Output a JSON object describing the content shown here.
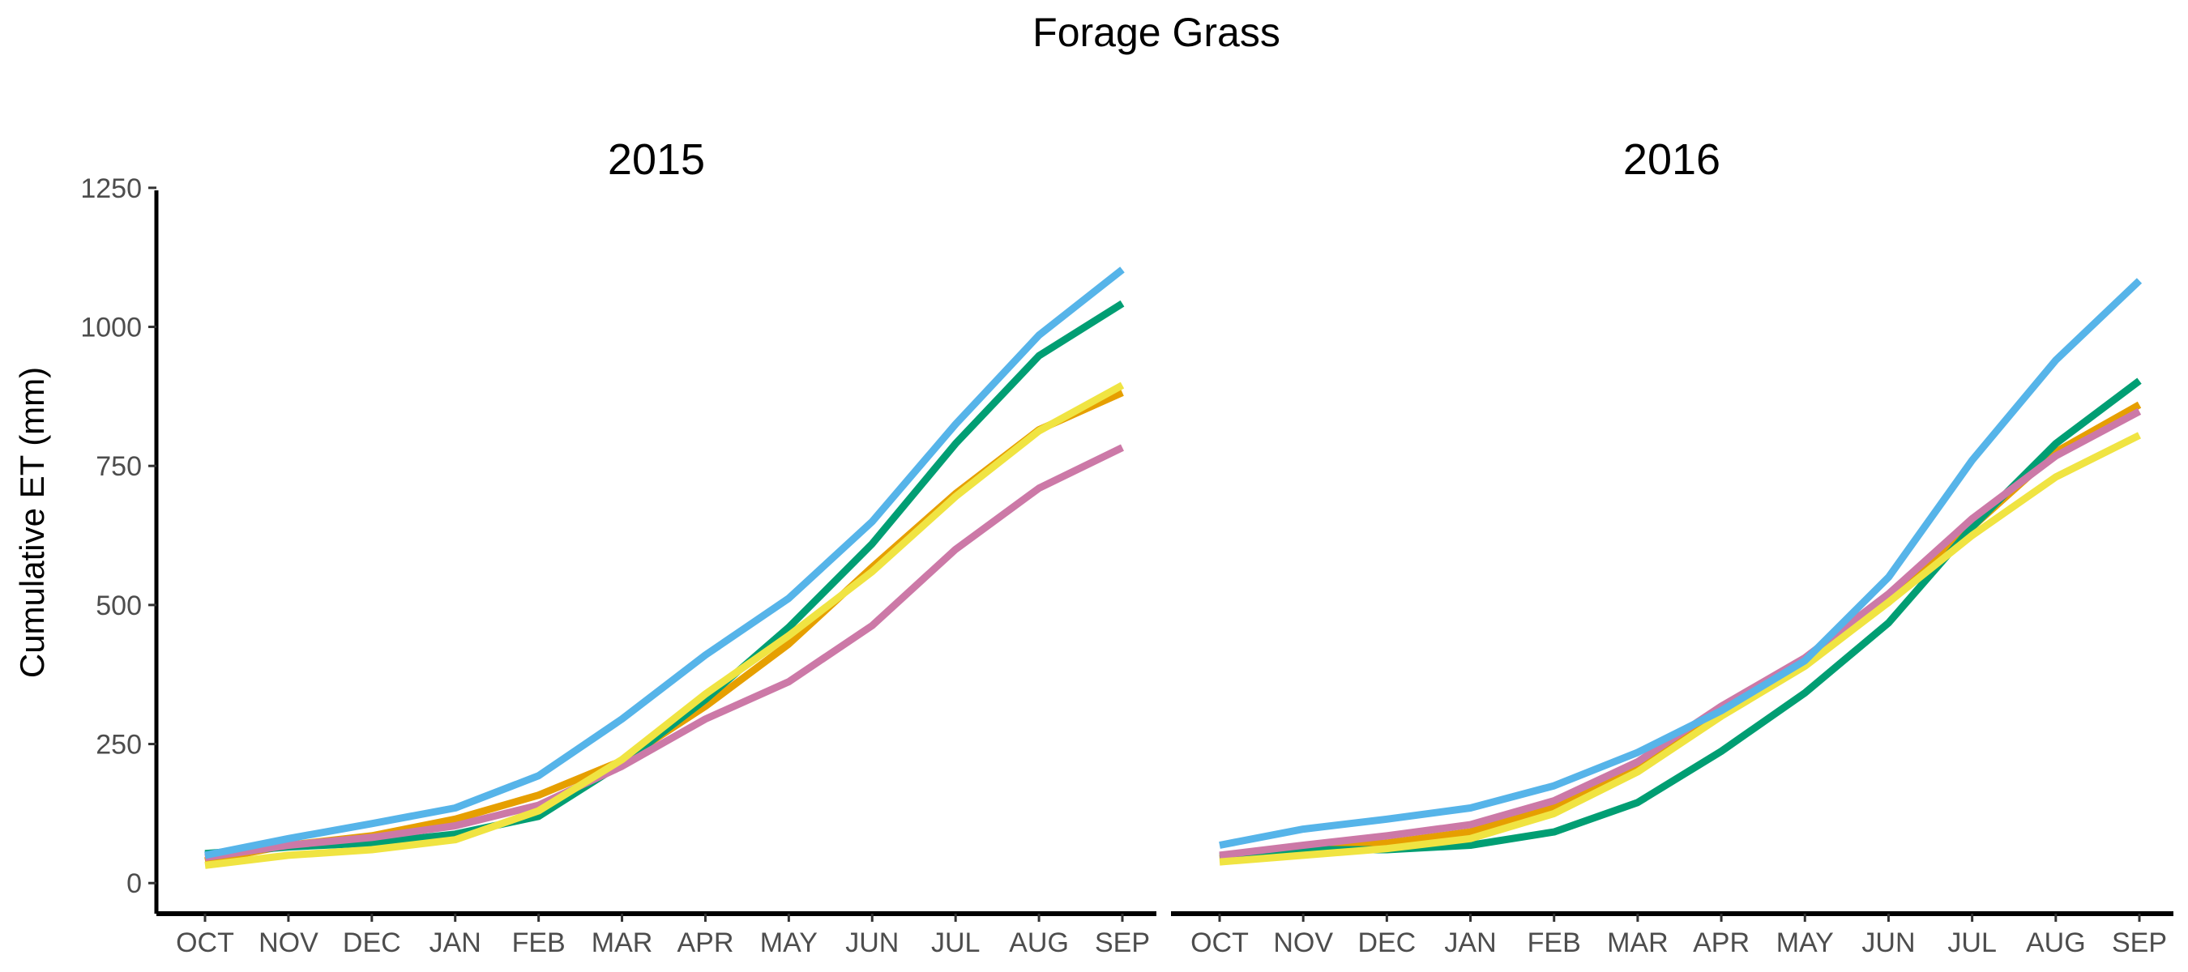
{
  "chart_data": {
    "type": "line",
    "title": "Forage Grass",
    "ylabel": "Cumulative ET (mm)",
    "xlabel": "",
    "ylim": [
      -55,
      1260
    ],
    "yticks": [
      0,
      250,
      500,
      750,
      1000,
      1250
    ],
    "categories": [
      "OCT",
      "NOV",
      "DEC",
      "JAN",
      "FEB",
      "MAR",
      "APR",
      "MAY",
      "JUN",
      "JUL",
      "AUG",
      "SEP"
    ],
    "grid": false,
    "legend": "none",
    "panels": [
      {
        "title": "2015",
        "series": [
          {
            "color": "#E69F00",
            "values": [
              40,
              68,
              85,
              115,
              158,
              220,
              318,
              430,
              568,
              700,
              815,
              882
            ]
          },
          {
            "color": "#009E73",
            "values": [
              53,
              65,
              72,
              88,
              120,
              215,
              330,
              460,
              610,
              790,
              948,
              1042
            ]
          },
          {
            "color": "#CC79A7",
            "values": [
              46,
              68,
              82,
              103,
              140,
              210,
              295,
              362,
              463,
              600,
              710,
              783
            ]
          },
          {
            "color": "#F0E442",
            "values": [
              32,
              50,
              60,
              78,
              130,
              222,
              340,
              445,
              560,
              695,
              813,
              895
            ]
          },
          {
            "color": "#56B4E9",
            "values": [
              50,
              80,
              107,
              135,
              193,
              295,
              410,
              512,
              650,
              825,
              985,
              1103
            ]
          }
        ]
      },
      {
        "title": "2016",
        "series": [
          {
            "color": "#E69F00",
            "values": [
              44,
              60,
              72,
              92,
              135,
              210,
              305,
              400,
              505,
              640,
              775,
              860
            ]
          },
          {
            "color": "#009E73",
            "values": [
              48,
              60,
              60,
              68,
              92,
              145,
              237,
              342,
              468,
              640,
              790,
              903
            ]
          },
          {
            "color": "#CC79A7",
            "values": [
              50,
              68,
              85,
              105,
              148,
              218,
              318,
              405,
              520,
              655,
              768,
              848
            ]
          },
          {
            "color": "#F0E442",
            "values": [
              38,
              50,
              62,
              80,
              125,
              200,
              300,
              390,
              505,
              625,
              730,
              805
            ]
          },
          {
            "color": "#56B4E9",
            "values": [
              68,
              97,
              115,
              135,
              175,
              235,
              310,
              400,
              550,
              760,
              940,
              1083
            ]
          }
        ]
      }
    ]
  }
}
